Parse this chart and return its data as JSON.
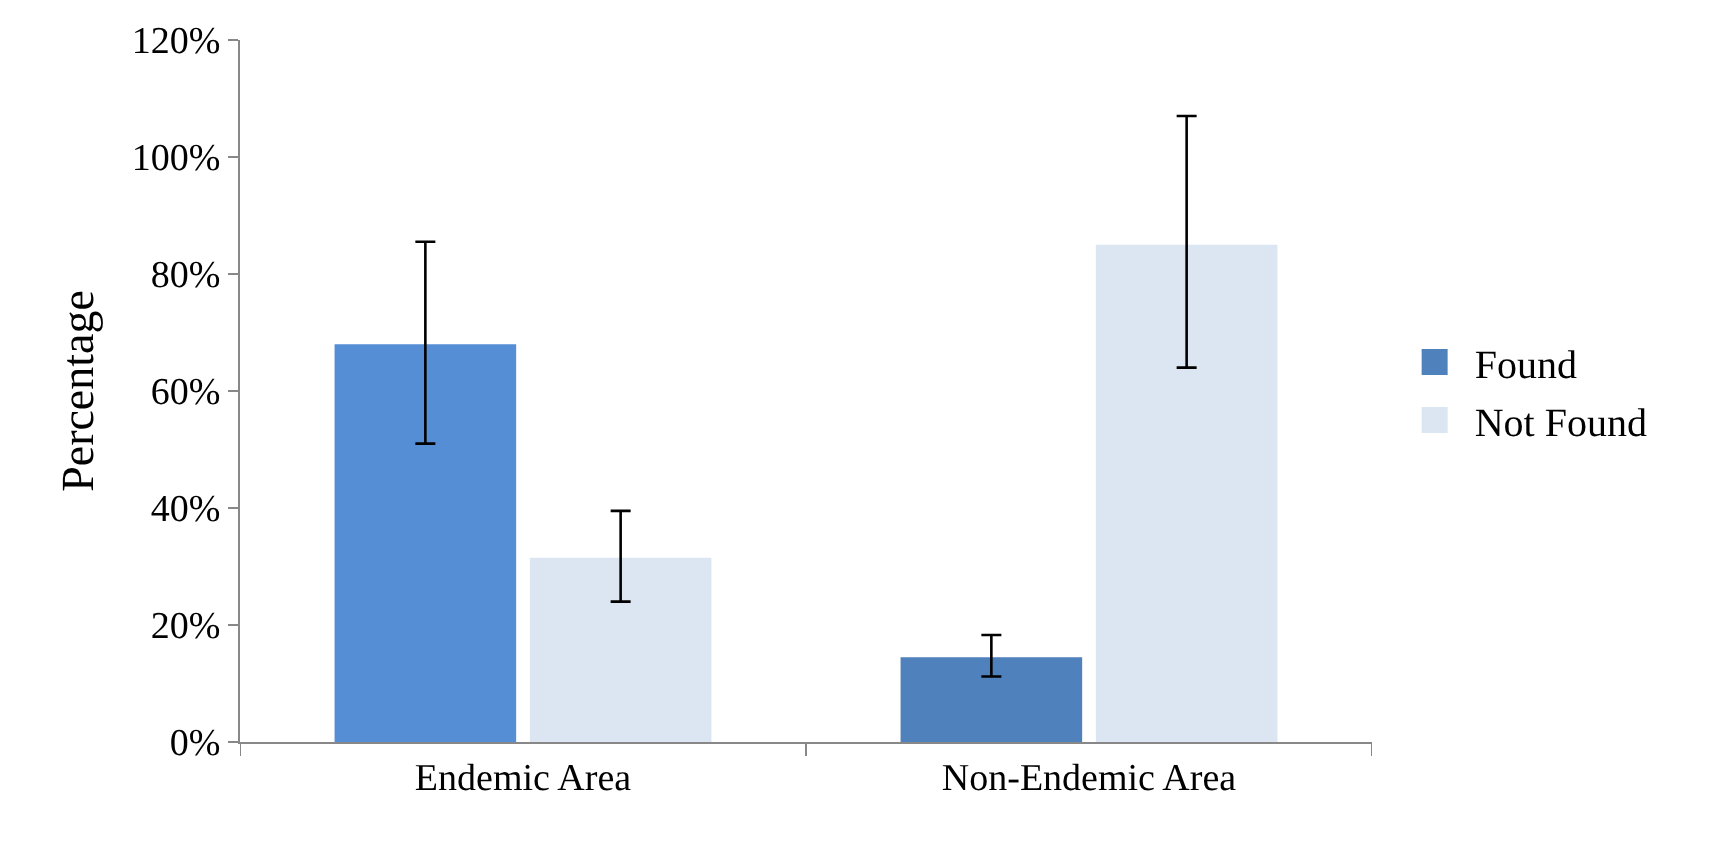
{
  "chart_data": {
    "type": "bar",
    "ylabel": "Percentage",
    "categories": [
      "Endemic Area",
      "Non-Endemic Area"
    ],
    "series": [
      {
        "name": "Found",
        "color": "#4f81bd",
        "colors": [
          "#558ed5",
          "#4f81bd"
        ],
        "values": [
          68,
          14.5
        ],
        "errors": [
          [
            51,
            85.5
          ],
          [
            11.2,
            18.3
          ]
        ]
      },
      {
        "name": "Not Found",
        "color": "#dce6f2",
        "colors": [
          "#dce6f2",
          "#dce6f2"
        ],
        "values": [
          31.5,
          85
        ],
        "errors": [
          [
            24,
            39.5
          ],
          [
            64,
            107
          ]
        ]
      }
    ],
    "ylim": [
      0,
      120
    ],
    "yticks": [
      {
        "value": 0,
        "label": "0%"
      },
      {
        "value": 20,
        "label": "20%"
      },
      {
        "value": 40,
        "label": "40%"
      },
      {
        "value": 60,
        "label": "60%"
      },
      {
        "value": 80,
        "label": "80%"
      },
      {
        "value": 100,
        "label": "100%"
      },
      {
        "value": 120,
        "label": "120%"
      }
    ],
    "legend": "right"
  }
}
